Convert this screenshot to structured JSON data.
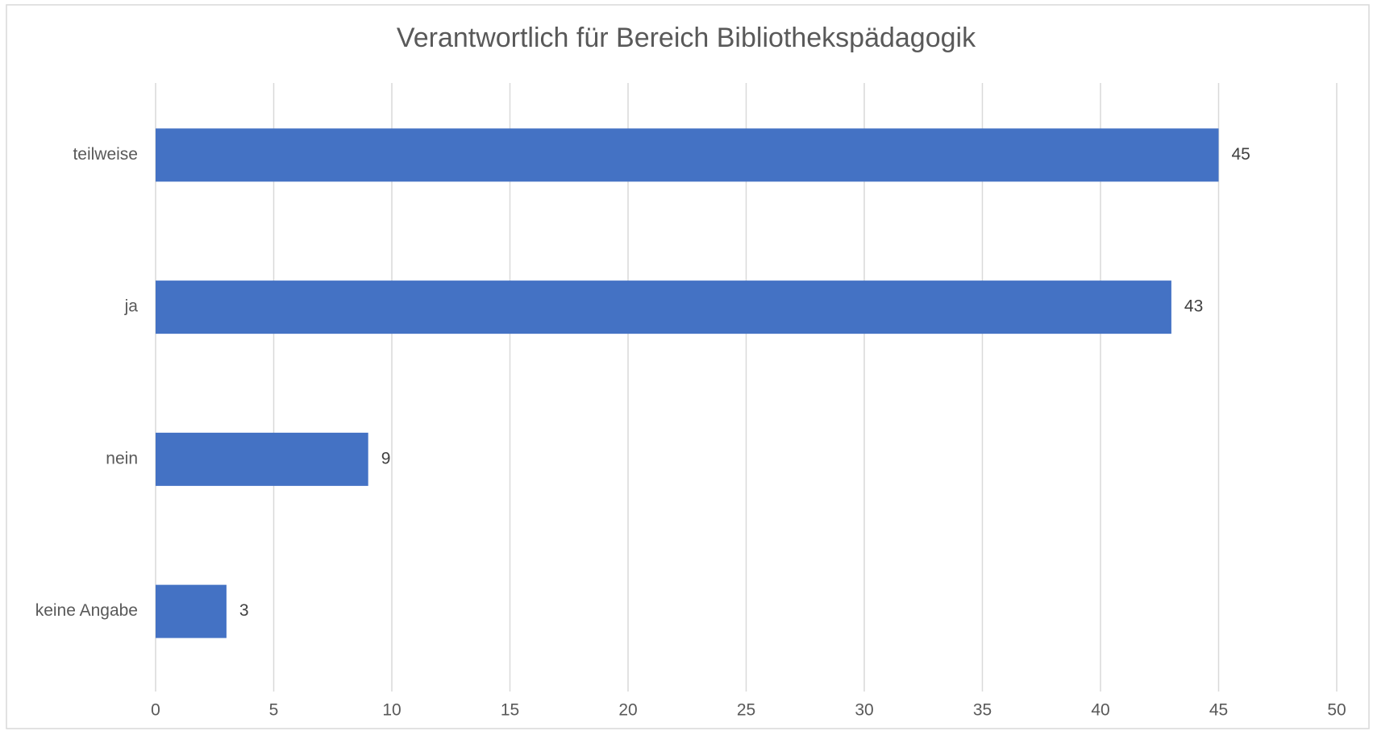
{
  "chart_data": {
    "type": "barh",
    "title": "Verantwortlich für Bereich Bibliothekspädagogik",
    "categories": [
      "teilweise",
      "ja",
      "nein",
      "keine Angabe"
    ],
    "values": [
      45,
      43,
      9,
      3
    ],
    "color": "#4472c4",
    "xlim": [
      0,
      50
    ],
    "xticks": [
      0,
      5,
      10,
      15,
      20,
      25,
      30,
      35,
      40,
      45,
      50
    ],
    "grid": true
  }
}
